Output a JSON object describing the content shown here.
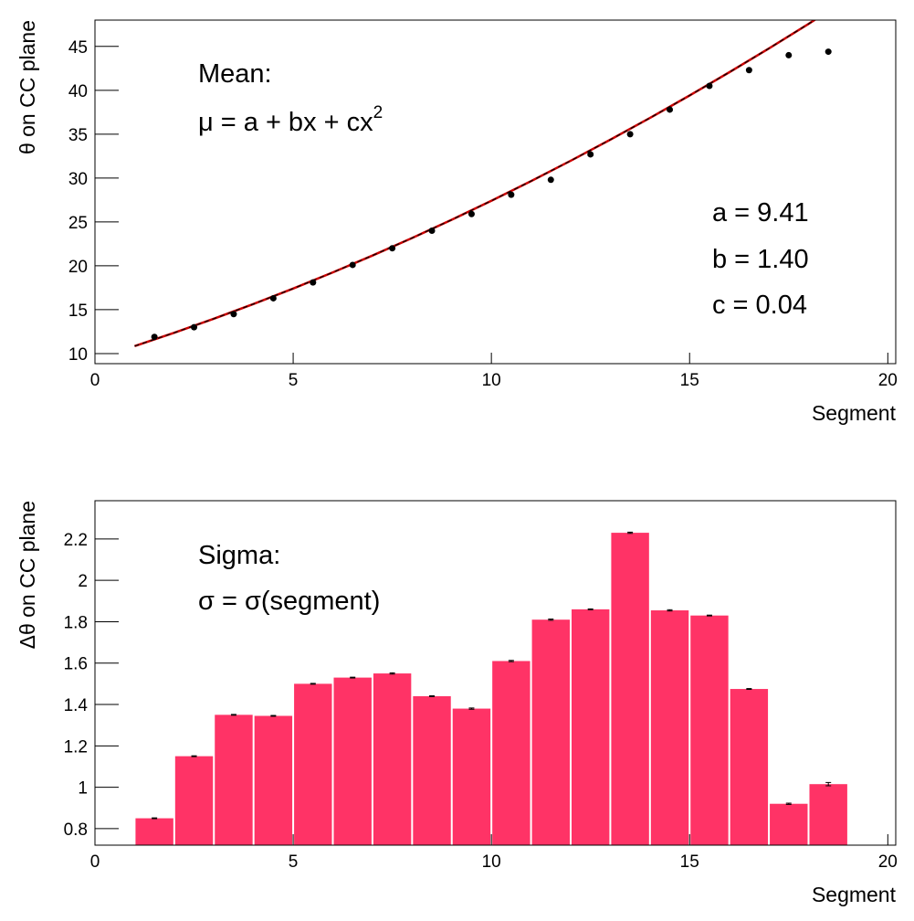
{
  "chart_data": [
    {
      "type": "scatter",
      "y_label": "θ on CC plane",
      "x_label": "Segment",
      "annotations": [
        "Mean:"
      ],
      "formula": {
        "main": "μ = a + bx + cx",
        "sup": "2"
      },
      "params": [
        "a = 9.41",
        "b = 1.40",
        "c = 0.04"
      ],
      "x": [
        1.5,
        2.5,
        3.5,
        4.5,
        5.5,
        6.5,
        7.5,
        8.5,
        9.5,
        10.5,
        11.5,
        12.5,
        13.5,
        14.5,
        15.5,
        16.5,
        17.5,
        18.5
      ],
      "values": [
        11.9,
        13.0,
        14.5,
        16.3,
        18.1,
        20.1,
        22.0,
        24.0,
        25.9,
        28.1,
        29.8,
        32.7,
        35.0,
        37.8,
        40.5,
        42.3,
        44.0,
        44.4
      ],
      "color": "#000000",
      "fit": {
        "x": [
          1,
          2,
          3,
          4,
          5,
          6,
          7,
          8,
          9,
          10,
          11,
          12,
          13,
          14,
          15,
          16,
          17,
          18,
          19
        ],
        "values": [
          10.85,
          12.37,
          13.97,
          15.65,
          17.41,
          19.25,
          21.17,
          23.17,
          25.25,
          27.41,
          29.65,
          31.97,
          34.37,
          36.85,
          39.41,
          42.05,
          44.77,
          47.57,
          50.45
        ],
        "color": "#cc0000",
        "dash_color": "#000000"
      },
      "xlim": [
        0,
        20.2
      ],
      "xticks": [
        0,
        5,
        10,
        15,
        20
      ],
      "ylim": [
        8.85,
        48
      ],
      "yticks": [
        10,
        15,
        20,
        25,
        30,
        35,
        40,
        45
      ]
    },
    {
      "type": "histogram",
      "y_label": "Δθ on CC plane",
      "x_label": "Segment",
      "annotations": [
        "Sigma:",
        "σ = σ(segment)"
      ],
      "bins": [
        1,
        2,
        3,
        4,
        5,
        6,
        7,
        8,
        9,
        10,
        11,
        12,
        13,
        14,
        15,
        16,
        17,
        18,
        19
      ],
      "values": [
        0.85,
        1.15,
        1.35,
        1.345,
        1.5,
        1.53,
        1.55,
        1.44,
        1.38,
        1.61,
        1.81,
        1.86,
        2.23,
        1.855,
        1.83,
        1.475,
        0.92,
        1.015
      ],
      "errors": [
        0.002,
        0.002,
        0.002,
        0.002,
        0.002,
        0.002,
        0.003,
        0.002,
        0.003,
        0.003,
        0.003,
        0.002,
        0.003,
        0.003,
        0.002,
        0.002,
        0.003,
        0.008
      ],
      "color": "#ff3366",
      "xlim": [
        0,
        20.2
      ],
      "xticks": [
        0,
        5,
        10,
        15,
        20
      ],
      "ylim": [
        0.72,
        2.385
      ],
      "yticks": [
        0.8,
        1,
        1.2,
        1.4,
        1.6,
        1.8,
        2,
        2.2
      ]
    }
  ]
}
